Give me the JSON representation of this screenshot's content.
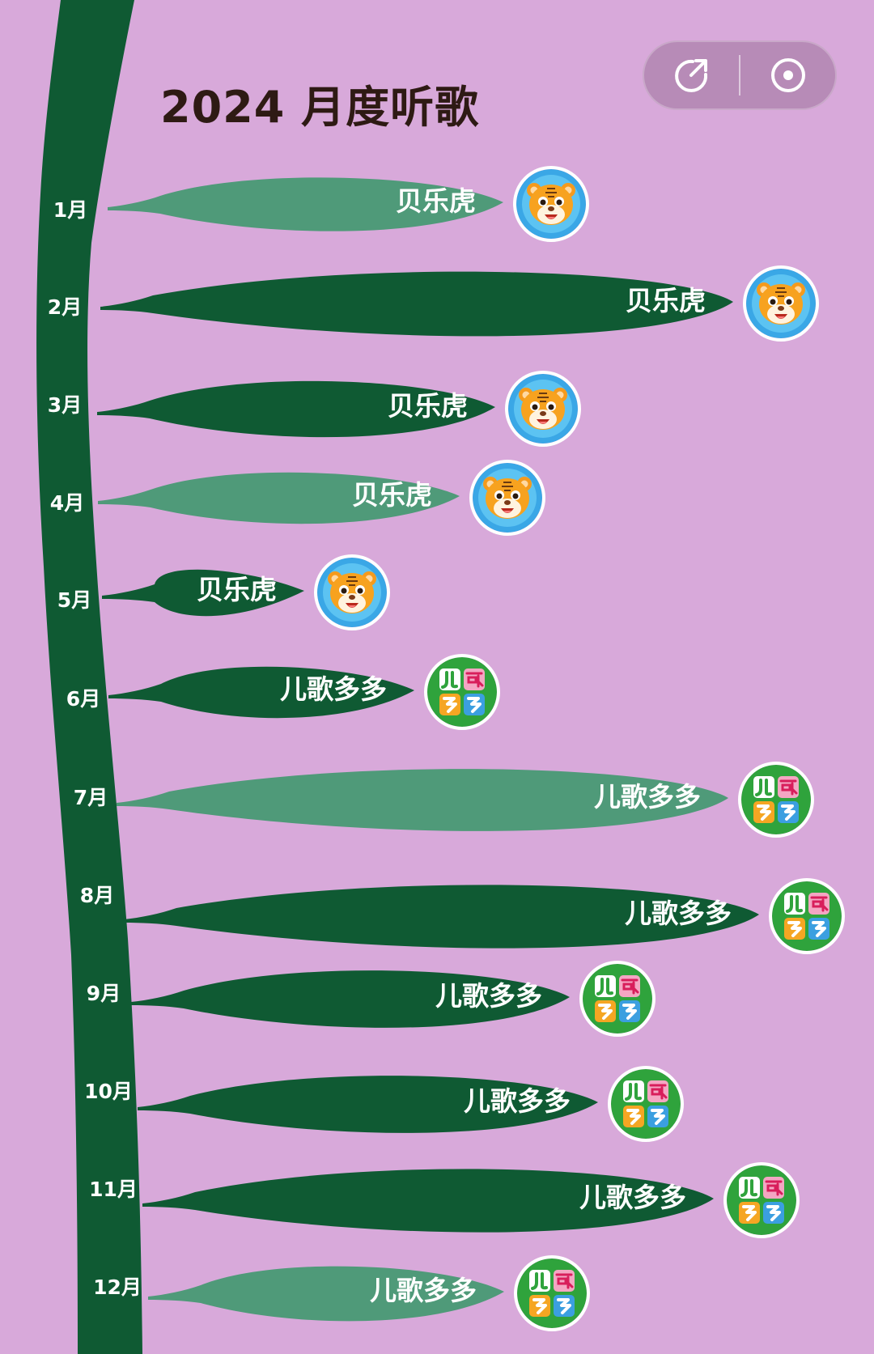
{
  "page": {
    "title": "2024 月度听歌",
    "colors": {
      "background": "#d8a9da",
      "stem": "#0f5a33",
      "leaf_dark": "#0f5a33",
      "leaf_light": "#4f9a79",
      "controls_bg": "#b78bb7"
    }
  },
  "controls": {
    "share_icon": "share-icon",
    "target_icon": "record-target-icon"
  },
  "months": [
    {
      "label": "1月",
      "artist": "贝乐虎",
      "icon": "tiger-avatar",
      "leaf_tone": "light"
    },
    {
      "label": "2月",
      "artist": "贝乐虎",
      "icon": "tiger-avatar",
      "leaf_tone": "dark"
    },
    {
      "label": "3月",
      "artist": "贝乐虎",
      "icon": "tiger-avatar",
      "leaf_tone": "dark"
    },
    {
      "label": "4月",
      "artist": "贝乐虎",
      "icon": "tiger-avatar",
      "leaf_tone": "light"
    },
    {
      "label": "5月",
      "artist": "贝乐虎",
      "icon": "tiger-avatar",
      "leaf_tone": "dark"
    },
    {
      "label": "6月",
      "artist": "儿歌多多",
      "icon": "erge-duoduo-logo",
      "leaf_tone": "dark"
    },
    {
      "label": "7月",
      "artist": "儿歌多多",
      "icon": "erge-duoduo-logo",
      "leaf_tone": "light"
    },
    {
      "label": "8月",
      "artist": "儿歌多多",
      "icon": "erge-duoduo-logo",
      "leaf_tone": "dark"
    },
    {
      "label": "9月",
      "artist": "儿歌多多",
      "icon": "erge-duoduo-logo",
      "leaf_tone": "dark"
    },
    {
      "label": "10月",
      "artist": "儿歌多多",
      "icon": "erge-duoduo-logo",
      "leaf_tone": "dark"
    },
    {
      "label": "11月",
      "artist": "儿歌多多",
      "icon": "erge-duoduo-logo",
      "leaf_tone": "dark"
    },
    {
      "label": "12月",
      "artist": "儿歌多多",
      "icon": "erge-duoduo-logo",
      "leaf_tone": "light"
    }
  ]
}
